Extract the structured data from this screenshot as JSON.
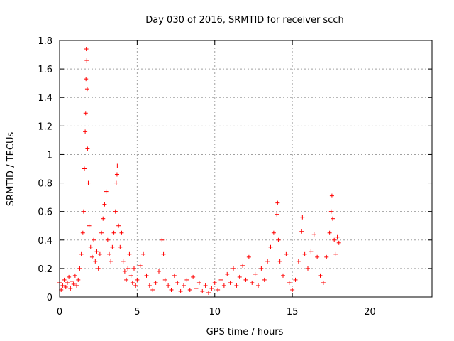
{
  "chart_data": {
    "type": "scatter",
    "title": "Day 030 of 2016, SRMTID for receiver scch",
    "xlabel": "GPS time / hours",
    "ylabel": "SRMTID / TECUs",
    "xlim": [
      0,
      24
    ],
    "ylim": [
      0,
      1.8
    ],
    "xticks": [
      0,
      5,
      10,
      15,
      20
    ],
    "yticks": [
      0,
      0.2,
      0.4,
      0.6,
      0.8,
      1,
      1.2,
      1.4,
      1.6,
      1.8
    ],
    "ytick_labels": [
      "0",
      "0.2",
      "0.4",
      "0.6",
      "0.8",
      "1",
      "1.2",
      "1.4",
      "1.6",
      "1.8"
    ],
    "grid": true,
    "marker": "+",
    "series": [
      {
        "name": "SRMTID",
        "color": "#ff0000",
        "points": [
          [
            0.0,
            0.1
          ],
          [
            0.1,
            0.05
          ],
          [
            0.2,
            0.08
          ],
          [
            0.3,
            0.12
          ],
          [
            0.4,
            0.07
          ],
          [
            0.5,
            0.1
          ],
          [
            0.6,
            0.14
          ],
          [
            0.7,
            0.06
          ],
          [
            0.8,
            0.11
          ],
          [
            0.9,
            0.09
          ],
          [
            1.0,
            0.15
          ],
          [
            1.1,
            0.08
          ],
          [
            1.2,
            0.12
          ],
          [
            1.3,
            0.2
          ],
          [
            1.4,
            0.3
          ],
          [
            1.5,
            0.45
          ],
          [
            1.55,
            0.6
          ],
          [
            1.6,
            0.9
          ],
          [
            1.65,
            1.16
          ],
          [
            1.68,
            1.29
          ],
          [
            1.7,
            1.53
          ],
          [
            1.72,
            1.74
          ],
          [
            1.75,
            1.66
          ],
          [
            1.78,
            1.46
          ],
          [
            1.8,
            1.04
          ],
          [
            1.85,
            0.8
          ],
          [
            1.9,
            0.5
          ],
          [
            2.0,
            0.35
          ],
          [
            2.1,
            0.28
          ],
          [
            2.2,
            0.4
          ],
          [
            2.3,
            0.25
          ],
          [
            2.4,
            0.32
          ],
          [
            2.5,
            0.2
          ],
          [
            2.6,
            0.3
          ],
          [
            2.7,
            0.45
          ],
          [
            2.8,
            0.55
          ],
          [
            2.9,
            0.65
          ],
          [
            3.0,
            0.74
          ],
          [
            3.1,
            0.4
          ],
          [
            3.2,
            0.3
          ],
          [
            3.3,
            0.25
          ],
          [
            3.4,
            0.35
          ],
          [
            3.5,
            0.45
          ],
          [
            3.6,
            0.6
          ],
          [
            3.65,
            0.8
          ],
          [
            3.7,
            0.86
          ],
          [
            3.72,
            0.92
          ],
          [
            3.8,
            0.5
          ],
          [
            3.9,
            0.35
          ],
          [
            4.0,
            0.45
          ],
          [
            4.1,
            0.25
          ],
          [
            4.2,
            0.18
          ],
          [
            4.3,
            0.12
          ],
          [
            4.4,
            0.2
          ],
          [
            4.5,
            0.3
          ],
          [
            4.6,
            0.15
          ],
          [
            4.7,
            0.1
          ],
          [
            4.8,
            0.2
          ],
          [
            4.9,
            0.08
          ],
          [
            5.0,
            0.12
          ],
          [
            5.2,
            0.22
          ],
          [
            5.4,
            0.3
          ],
          [
            5.6,
            0.15
          ],
          [
            5.8,
            0.08
          ],
          [
            6.0,
            0.05
          ],
          [
            6.2,
            0.1
          ],
          [
            6.4,
            0.18
          ],
          [
            6.6,
            0.4
          ],
          [
            6.7,
            0.3
          ],
          [
            6.8,
            0.12
          ],
          [
            7.0,
            0.08
          ],
          [
            7.2,
            0.05
          ],
          [
            7.4,
            0.15
          ],
          [
            7.6,
            0.1
          ],
          [
            7.8,
            0.04
          ],
          [
            8.0,
            0.08
          ],
          [
            8.2,
            0.12
          ],
          [
            8.4,
            0.05
          ],
          [
            8.6,
            0.14
          ],
          [
            8.8,
            0.06
          ],
          [
            9.0,
            0.1
          ],
          [
            9.2,
            0.04
          ],
          [
            9.4,
            0.08
          ],
          [
            9.6,
            0.03
          ],
          [
            9.8,
            0.06
          ],
          [
            10.0,
            0.1
          ],
          [
            10.2,
            0.05
          ],
          [
            10.4,
            0.12
          ],
          [
            10.6,
            0.08
          ],
          [
            10.8,
            0.16
          ],
          [
            11.0,
            0.1
          ],
          [
            11.2,
            0.2
          ],
          [
            11.4,
            0.08
          ],
          [
            11.6,
            0.14
          ],
          [
            11.8,
            0.22
          ],
          [
            12.0,
            0.12
          ],
          [
            12.2,
            0.28
          ],
          [
            12.4,
            0.1
          ],
          [
            12.6,
            0.16
          ],
          [
            12.8,
            0.08
          ],
          [
            13.0,
            0.2
          ],
          [
            13.2,
            0.12
          ],
          [
            13.4,
            0.25
          ],
          [
            13.6,
            0.35
          ],
          [
            13.8,
            0.45
          ],
          [
            14.0,
            0.58
          ],
          [
            14.05,
            0.66
          ],
          [
            14.1,
            0.4
          ],
          [
            14.2,
            0.25
          ],
          [
            14.4,
            0.15
          ],
          [
            14.6,
            0.3
          ],
          [
            14.8,
            0.1
          ],
          [
            15.0,
            0.05
          ],
          [
            15.2,
            0.12
          ],
          [
            15.4,
            0.25
          ],
          [
            15.6,
            0.46
          ],
          [
            15.65,
            0.56
          ],
          [
            15.8,
            0.3
          ],
          [
            16.0,
            0.2
          ],
          [
            16.2,
            0.32
          ],
          [
            16.4,
            0.44
          ],
          [
            16.6,
            0.28
          ],
          [
            16.8,
            0.15
          ],
          [
            17.0,
            0.1
          ],
          [
            17.2,
            0.28
          ],
          [
            17.4,
            0.45
          ],
          [
            17.5,
            0.6
          ],
          [
            17.55,
            0.71
          ],
          [
            17.6,
            0.55
          ],
          [
            17.7,
            0.4
          ],
          [
            17.8,
            0.3
          ],
          [
            17.9,
            0.42
          ],
          [
            18.0,
            0.38
          ]
        ]
      }
    ]
  }
}
